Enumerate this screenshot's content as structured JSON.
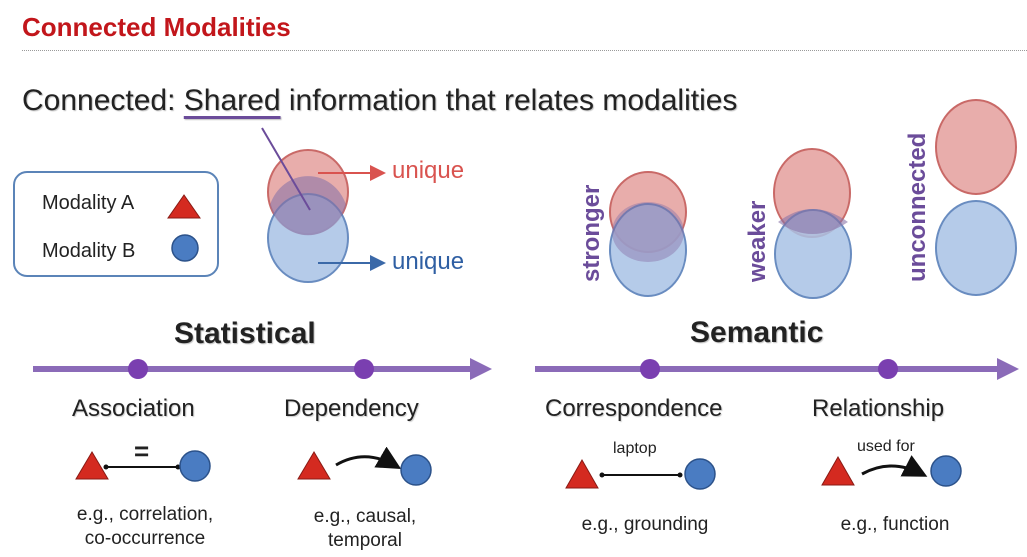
{
  "slide": {
    "title": "Connected Modalities",
    "headline_prefix": "Connected: ",
    "headline_underlined": "Shared",
    "headline_suffix": " information that relates modalities"
  },
  "legend": {
    "modality_a": "Modality A",
    "modality_b": "Modality B"
  },
  "venn": {
    "unique_a": "unique",
    "unique_b": "unique"
  },
  "overlap_levels": [
    "stronger",
    "weaker",
    "unconnected"
  ],
  "categories": {
    "statistical": {
      "heading": "Statistical",
      "items": [
        {
          "term": "Association",
          "link_label": "=",
          "example_1": "e.g., correlation,",
          "example_2": "co-occurrence"
        },
        {
          "term": "Dependency",
          "link_label": "",
          "example_1": "e.g., causal,",
          "example_2": "temporal"
        }
      ]
    },
    "semantic": {
      "heading": "Semantic",
      "items": [
        {
          "term": "Correspondence",
          "link_label": "laptop",
          "example_1": "e.g., grounding",
          "example_2": ""
        },
        {
          "term": "Relationship",
          "link_label": "used for",
          "example_1": "e.g., function",
          "example_2": ""
        }
      ]
    }
  },
  "colors": {
    "title_red": "#c2161b",
    "modality_a_red": "#d42a20",
    "modality_b_blue": "#4a7cc2",
    "venn_red_fill": "#e49f9d",
    "venn_blue_fill": "#a9c3e6",
    "overlap_purple": "#8a74a8",
    "axis_purple": "#8b6bb8",
    "dot_purple": "#7a3fb0"
  }
}
